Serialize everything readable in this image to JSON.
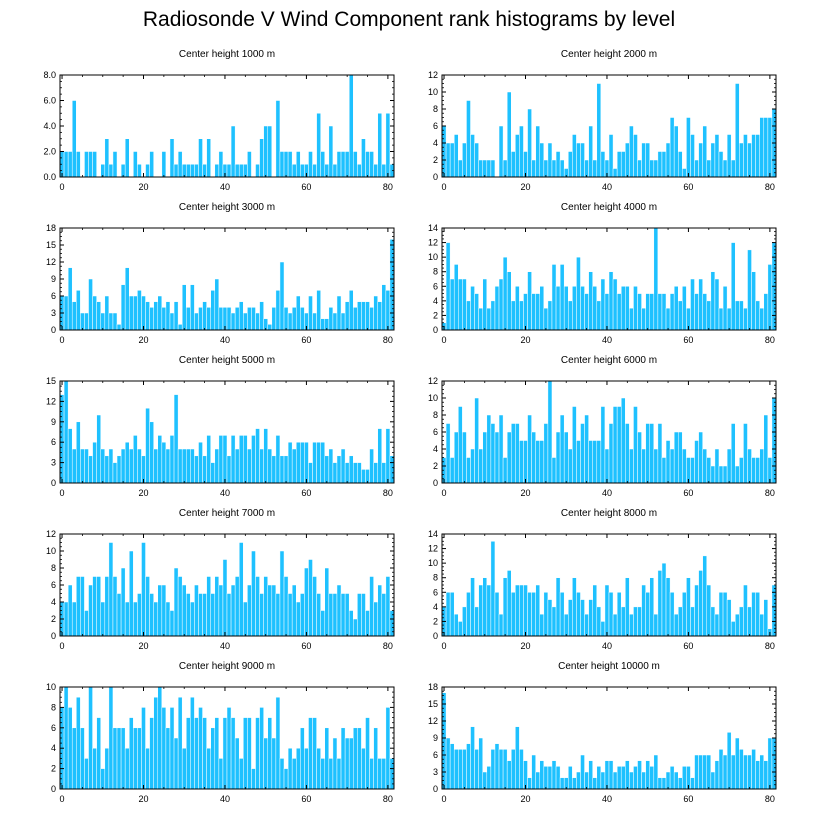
{
  "title": "Radiosonde V Wind Component rank histograms by level",
  "colors": {
    "bar_fill": "#1ec1ff",
    "bar_stroke": "#ffffff",
    "axis": "#000000"
  },
  "chart_data": [
    {
      "type": "bar",
      "title": "Center height 1000 m",
      "ylim": [
        0,
        8
      ],
      "yticks": [
        0,
        2,
        4,
        6,
        8
      ],
      "ytick_labels": [
        "0.0",
        "2.0",
        "4.0",
        "6.0",
        "8.0"
      ],
      "xlim": [
        -0.5,
        81.5
      ],
      "xticks": [
        0,
        20,
        40,
        60,
        80
      ],
      "values": [
        2,
        2,
        2,
        6,
        2,
        0,
        2,
        2,
        2,
        0,
        1,
        3,
        1,
        2,
        0,
        1,
        3,
        0,
        2,
        1,
        0,
        1,
        2,
        0,
        0,
        2,
        0,
        3,
        1,
        2,
        1,
        1,
        1,
        1,
        3,
        1,
        3,
        0,
        1,
        2,
        1,
        1,
        4,
        1,
        1,
        1,
        2,
        0,
        1,
        3,
        4,
        4,
        0,
        6,
        2,
        2,
        2,
        1,
        2,
        1,
        1,
        2,
        1,
        5,
        2,
        1,
        4,
        1,
        2,
        2,
        2,
        8,
        2,
        1,
        3,
        2,
        2,
        1,
        5,
        1,
        5,
        1
      ]
    },
    {
      "type": "bar",
      "title": "Center height 2000 m",
      "ylim": [
        0,
        12
      ],
      "yticks": [
        0,
        2,
        4,
        6,
        8,
        10,
        12
      ],
      "ytick_labels": [
        "0",
        "2",
        "4",
        "6",
        "8",
        "10",
        "12"
      ],
      "xlim": [
        -0.5,
        81.5
      ],
      "xticks": [
        0,
        20,
        40,
        60,
        80
      ],
      "values": [
        6,
        4,
        4,
        5,
        2,
        4,
        9,
        5,
        4,
        2,
        2,
        2,
        2,
        0,
        6,
        2,
        10,
        3,
        5,
        6,
        3,
        8,
        2,
        6,
        4,
        2,
        4,
        2,
        3,
        2,
        1,
        3,
        5,
        4,
        4,
        2,
        6,
        2,
        11,
        3,
        2,
        5,
        1,
        3,
        3,
        4,
        6,
        5,
        2,
        4,
        4,
        2,
        2,
        3,
        3,
        4,
        7,
        6,
        3,
        1,
        7,
        5,
        2,
        4,
        6,
        2,
        4,
        5,
        3,
        2,
        5,
        2,
        11,
        4,
        5,
        4,
        5,
        5,
        7,
        7,
        7,
        8
      ]
    },
    {
      "type": "bar",
      "title": "Center height 3000 m",
      "ylim": [
        0,
        18
      ],
      "yticks": [
        0,
        3,
        6,
        9,
        12,
        15,
        18
      ],
      "ytick_labels": [
        "0",
        "3",
        "6",
        "9",
        "12",
        "15",
        "18"
      ],
      "xlim": [
        -0.5,
        81.5
      ],
      "xticks": [
        0,
        20,
        40,
        60,
        80
      ],
      "values": [
        6,
        6,
        11,
        5,
        7,
        3,
        3,
        9,
        6,
        5,
        3,
        6,
        3,
        3,
        1,
        8,
        11,
        6,
        6,
        7,
        6,
        5,
        4,
        5,
        6,
        4,
        5,
        3,
        5,
        1,
        8,
        4,
        8,
        3,
        4,
        5,
        4,
        7,
        9,
        4,
        4,
        4,
        3,
        4,
        5,
        3,
        4,
        4,
        3,
        5,
        2,
        1,
        4,
        7,
        12,
        4,
        3,
        4,
        6,
        4,
        3,
        6,
        3,
        7,
        2,
        2,
        4,
        3,
        6,
        3,
        5,
        7,
        4,
        5,
        5,
        5,
        4,
        6,
        5,
        8,
        7,
        16
      ]
    },
    {
      "type": "bar",
      "title": "Center height 4000 m",
      "ylim": [
        0,
        14
      ],
      "yticks": [
        0,
        2,
        4,
        6,
        8,
        10,
        12,
        14
      ],
      "ytick_labels": [
        "0",
        "2",
        "4",
        "6",
        "8",
        "10",
        "12",
        "14"
      ],
      "xlim": [
        -0.5,
        81.5
      ],
      "xticks": [
        0,
        20,
        40,
        60,
        80
      ],
      "values": [
        1,
        12,
        7,
        9,
        7,
        7,
        4,
        6,
        5,
        3,
        7,
        3,
        4,
        6,
        7,
        10,
        8,
        4,
        6,
        4,
        5,
        8,
        5,
        5,
        6,
        3,
        4,
        9,
        6,
        9,
        6,
        4,
        6,
        10,
        6,
        5,
        8,
        6,
        4,
        7,
        5,
        8,
        7,
        5,
        6,
        6,
        3,
        6,
        5,
        3,
        5,
        5,
        14,
        5,
        5,
        3,
        5,
        6,
        4,
        6,
        3,
        7,
        5,
        7,
        5,
        4,
        8,
        7,
        3,
        6,
        3,
        12,
        4,
        4,
        3,
        11,
        8,
        4,
        3,
        5,
        9,
        12
      ]
    },
    {
      "type": "bar",
      "title": "Center height 5000 m",
      "ylim": [
        0,
        15
      ],
      "yticks": [
        0,
        3,
        6,
        9,
        12,
        15
      ],
      "ytick_labels": [
        "0",
        "3",
        "6",
        "9",
        "12",
        "15"
      ],
      "xlim": [
        -0.5,
        81.5
      ],
      "xticks": [
        0,
        20,
        40,
        60,
        80
      ],
      "values": [
        13,
        15,
        8,
        5,
        9,
        5,
        5,
        4,
        6,
        10,
        5,
        4,
        5,
        3,
        4,
        5,
        6,
        5,
        7,
        5,
        4,
        11,
        9,
        5,
        7,
        6,
        5,
        7,
        13,
        5,
        5,
        5,
        5,
        4,
        6,
        4,
        7,
        3,
        5,
        7,
        7,
        4,
        7,
        5,
        7,
        7,
        5,
        7,
        8,
        5,
        8,
        5,
        4,
        7,
        4,
        4,
        6,
        5,
        6,
        6,
        6,
        3,
        6,
        6,
        6,
        4,
        5,
        3,
        4,
        5,
        3,
        4,
        3,
        3,
        2,
        2,
        5,
        3,
        8,
        3,
        8,
        4
      ]
    },
    {
      "type": "bar",
      "title": "Center height 6000 m",
      "ylim": [
        0,
        12
      ],
      "yticks": [
        0,
        2,
        4,
        6,
        8,
        10,
        12
      ],
      "ytick_labels": [
        "0",
        "2",
        "4",
        "6",
        "8",
        "10",
        "12"
      ],
      "xlim": [
        -0.5,
        81.5
      ],
      "xticks": [
        0,
        20,
        40,
        60,
        80
      ],
      "values": [
        3,
        7,
        3,
        6,
        9,
        6,
        3,
        4,
        10,
        4,
        6,
        8,
        7,
        6,
        8,
        3,
        6,
        7,
        7,
        5,
        5,
        8,
        6,
        5,
        5,
        7,
        12,
        3,
        6,
        8,
        6,
        4,
        9,
        5,
        7,
        8,
        5,
        5,
        5,
        9,
        4,
        7,
        9,
        9,
        10,
        7,
        4,
        9,
        6,
        4,
        7,
        7,
        4,
        7,
        3,
        5,
        4,
        6,
        6,
        4,
        3,
        3,
        5,
        6,
        4,
        3,
        2,
        4,
        2,
        2,
        4,
        7,
        2,
        3,
        7,
        4,
        3,
        3,
        4,
        8,
        3,
        10
      ]
    },
    {
      "type": "bar",
      "title": "Center height 7000 m",
      "ylim": [
        0,
        12
      ],
      "yticks": [
        0,
        2,
        4,
        6,
        8,
        10,
        12
      ],
      "ytick_labels": [
        "0",
        "2",
        "4",
        "6",
        "8",
        "10",
        "12"
      ],
      "xlim": [
        -0.5,
        81.5
      ],
      "xticks": [
        0,
        20,
        40,
        60,
        80
      ],
      "values": [
        4,
        4,
        6,
        4,
        7,
        7,
        3,
        6,
        7,
        7,
        4,
        7,
        11,
        7,
        5,
        8,
        4,
        10,
        4,
        5,
        11,
        7,
        5,
        4,
        6,
        6,
        4,
        3,
        8,
        7,
        6,
        5,
        4,
        6,
        5,
        5,
        7,
        5,
        7,
        6,
        9,
        5,
        6,
        7,
        11,
        4,
        6,
        10,
        7,
        5,
        7,
        6,
        6,
        5,
        10,
        7,
        5,
        6,
        4,
        5,
        8,
        9,
        7,
        5,
        3,
        8,
        5,
        5,
        6,
        5,
        5,
        3,
        2,
        5,
        5,
        3,
        7,
        4,
        6,
        5,
        7,
        3
      ]
    },
    {
      "type": "bar",
      "title": "Center height 8000 m",
      "ylim": [
        0,
        14
      ],
      "yticks": [
        0,
        2,
        4,
        6,
        8,
        10,
        12,
        14
      ],
      "ytick_labels": [
        "0",
        "2",
        "4",
        "6",
        "8",
        "10",
        "12",
        "14"
      ],
      "xlim": [
        -0.5,
        81.5
      ],
      "xticks": [
        0,
        20,
        40,
        60,
        80
      ],
      "values": [
        4,
        6,
        6,
        3,
        2,
        4,
        6,
        8,
        4,
        7,
        8,
        7,
        13,
        6,
        3,
        8,
        9,
        6,
        7,
        7,
        7,
        6,
        6,
        7,
        3,
        6,
        5,
        4,
        8,
        6,
        3,
        5,
        8,
        6,
        5,
        3,
        5,
        7,
        4,
        2,
        7,
        6,
        3,
        6,
        4,
        8,
        3,
        4,
        4,
        7,
        6,
        8,
        3,
        9,
        10,
        8,
        6,
        3,
        4,
        6,
        8,
        4,
        7,
        9,
        11,
        7,
        4,
        3,
        6,
        6,
        5,
        2,
        3,
        4,
        7,
        4,
        6,
        6,
        3,
        5,
        1,
        7
      ]
    },
    {
      "type": "bar",
      "title": "Center height 9000 m",
      "ylim": [
        0,
        10
      ],
      "yticks": [
        0,
        2,
        4,
        6,
        8,
        10
      ],
      "ytick_labels": [
        "0",
        "2",
        "4",
        "6",
        "8",
        "10"
      ],
      "xlim": [
        -0.5,
        81.5
      ],
      "xticks": [
        0,
        20,
        40,
        60,
        80
      ],
      "values": [
        8,
        10,
        8,
        6,
        9,
        6,
        3,
        10,
        4,
        7,
        2,
        4,
        10,
        6,
        6,
        6,
        4,
        7,
        6,
        6,
        8,
        4,
        7,
        9,
        10,
        8,
        6,
        8,
        5,
        9,
        4,
        7,
        9,
        7,
        8,
        7,
        4,
        6,
        7,
        3,
        7,
        8,
        7,
        5,
        3,
        7,
        7,
        2,
        7,
        8,
        5,
        7,
        5,
        9,
        3,
        2,
        4,
        3,
        4,
        6,
        4,
        7,
        7,
        4,
        3,
        6,
        3,
        5,
        3,
        6,
        5,
        5,
        6,
        6,
        4,
        7,
        3,
        6,
        3,
        3,
        8,
        3
      ]
    },
    {
      "type": "bar",
      "title": "Center height 10000 m",
      "ylim": [
        0,
        18
      ],
      "yticks": [
        0,
        3,
        6,
        9,
        12,
        15,
        18
      ],
      "ytick_labels": [
        "0",
        "3",
        "6",
        "9",
        "12",
        "15",
        "18"
      ],
      "xlim": [
        -0.5,
        81.5
      ],
      "xticks": [
        0,
        20,
        40,
        60,
        80
      ],
      "values": [
        17,
        9,
        8,
        7,
        7,
        7,
        8,
        11,
        7,
        9,
        3,
        4,
        7,
        8,
        7,
        7,
        5,
        7,
        11,
        7,
        5,
        2,
        6,
        3,
        5,
        4,
        4,
        5,
        4,
        2,
        2,
        4,
        2,
        3,
        6,
        3,
        5,
        2,
        4,
        3,
        5,
        5,
        3,
        4,
        4,
        5,
        3,
        4,
        5,
        3,
        5,
        4,
        6,
        2,
        2,
        3,
        4,
        3,
        2,
        4,
        4,
        2,
        6,
        6,
        6,
        6,
        3,
        5,
        7,
        6,
        10,
        6,
        9,
        7,
        6,
        6,
        7,
        5,
        6,
        5,
        9,
        9
      ]
    }
  ]
}
